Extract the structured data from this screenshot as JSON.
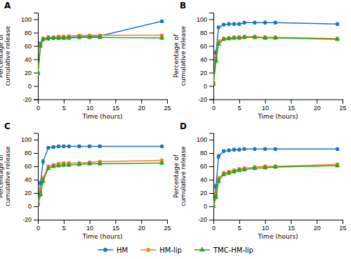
{
  "chart_data": [
    {
      "type": "line",
      "title": "A",
      "xlabel": "Time (hours)",
      "ylabel": "Percentage of\ncumulative release",
      "x": [
        0,
        0.5,
        1,
        2,
        3,
        4,
        5,
        6,
        8,
        10,
        12,
        24
      ],
      "xlim": [
        0,
        25
      ],
      "xticks": [
        0,
        5,
        10,
        15,
        20,
        25
      ],
      "ylim": [
        -20,
        110
      ],
      "yticks": [
        -20,
        0,
        20,
        40,
        60,
        80,
        100
      ],
      "grid": false,
      "legend": "bottom",
      "series": [
        {
          "name": "HM",
          "marker": "circle",
          "values": [
            20,
            64,
            70,
            71,
            72,
            72,
            72,
            73,
            74,
            74,
            75,
            97
          ],
          "errors": [
            2,
            2,
            2,
            2,
            2,
            2,
            2,
            2,
            2,
            2,
            2,
            2
          ]
        },
        {
          "name": "HM-lip",
          "marker": "square",
          "values": [
            18,
            62,
            71,
            73,
            73,
            74,
            74,
            75,
            76,
            76,
            76,
            76
          ],
          "errors": [
            2,
            2,
            2,
            2,
            2,
            2,
            2,
            2,
            2,
            2,
            2,
            2
          ]
        },
        {
          "name": "TMC-HM-lip",
          "marker": "triangle",
          "values": [
            19,
            60,
            70,
            72,
            72,
            72,
            72,
            72,
            73,
            73,
            73,
            72
          ],
          "errors": [
            2,
            2,
            2,
            2,
            2,
            2,
            2,
            2,
            2,
            2,
            2,
            2
          ]
        }
      ]
    },
    {
      "type": "line",
      "title": "B",
      "xlabel": "Time (hours)",
      "ylabel": "Percentage of\ncumulative release",
      "x": [
        0,
        0.5,
        1,
        2,
        3,
        4,
        5,
        6,
        8,
        10,
        12,
        24
      ],
      "xlim": [
        0,
        25
      ],
      "xticks": [
        0,
        5,
        10,
        15,
        20,
        25
      ],
      "ylim": [
        -20,
        110
      ],
      "yticks": [
        -20,
        0,
        20,
        40,
        60,
        80,
        100
      ],
      "grid": false,
      "series": [
        {
          "name": "HM",
          "marker": "circle",
          "values": [
            5,
            50,
            88,
            92,
            93,
            93,
            93,
            95,
            95,
            95,
            95,
            93
          ],
          "errors": [
            1,
            3,
            2,
            2,
            2,
            2,
            2,
            2,
            2,
            2,
            2,
            2
          ]
        },
        {
          "name": "HM-lip",
          "marker": "square",
          "values": [
            4,
            42,
            67,
            71,
            72,
            73,
            73,
            74,
            74,
            73,
            73,
            71
          ],
          "errors": [
            1,
            3,
            2,
            2,
            2,
            2,
            2,
            2,
            2,
            2,
            2,
            2
          ]
        },
        {
          "name": "TMC-HM-lip",
          "marker": "triangle",
          "values": [
            3,
            38,
            63,
            70,
            71,
            72,
            72,
            73,
            73,
            72,
            72,
            70
          ],
          "errors": [
            1,
            3,
            2,
            2,
            2,
            2,
            2,
            2,
            2,
            2,
            2,
            2
          ]
        }
      ]
    },
    {
      "type": "line",
      "title": "C",
      "xlabel": "Time (hours)",
      "ylabel": "Percentage of\ncumulative release",
      "x": [
        0,
        0.5,
        1,
        2,
        3,
        4,
        5,
        6,
        8,
        10,
        12,
        24
      ],
      "xlim": [
        0,
        25
      ],
      "xticks": [
        0,
        5,
        10,
        15,
        20,
        25
      ],
      "ylim": [
        -20,
        110
      ],
      "yticks": [
        -20,
        0,
        20,
        40,
        60,
        80,
        100
      ],
      "grid": false,
      "series": [
        {
          "name": "HM",
          "marker": "circle",
          "values": [
            5,
            35,
            67,
            88,
            89,
            90,
            90,
            90,
            90,
            90,
            90,
            90
          ],
          "errors": [
            1,
            3,
            3,
            2,
            2,
            2,
            2,
            2,
            2,
            2,
            2,
            2
          ]
        },
        {
          "name": "HM-lip",
          "marker": "square",
          "values": [
            4,
            22,
            42,
            60,
            62,
            64,
            65,
            65,
            65,
            66,
            67,
            69
          ],
          "errors": [
            1,
            3,
            3,
            2,
            2,
            2,
            2,
            2,
            2,
            2,
            2,
            2
          ]
        },
        {
          "name": "TMC-HM-lip",
          "marker": "triangle",
          "values": [
            3,
            18,
            38,
            57,
            60,
            61,
            62,
            62,
            63,
            64,
            64,
            65
          ],
          "errors": [
            1,
            3,
            3,
            2,
            2,
            2,
            2,
            2,
            2,
            2,
            2,
            2
          ]
        }
      ]
    },
    {
      "type": "line",
      "title": "D",
      "xlabel": "Time (hours)",
      "ylabel": "Percentage of\ncumulative release",
      "x": [
        0,
        0.5,
        1,
        2,
        3,
        4,
        5,
        6,
        8,
        10,
        12,
        24
      ],
      "xlim": [
        0,
        25
      ],
      "xticks": [
        0,
        5,
        10,
        15,
        20,
        25
      ],
      "ylim": [
        -20,
        110
      ],
      "yticks": [
        -20,
        0,
        20,
        40,
        60,
        80,
        100
      ],
      "grid": false,
      "series": [
        {
          "name": "HM",
          "marker": "circle",
          "values": [
            0,
            30,
            75,
            83,
            84,
            85,
            85,
            86,
            86,
            86,
            86,
            86
          ],
          "errors": [
            1,
            3,
            3,
            2,
            2,
            2,
            2,
            2,
            2,
            2,
            2,
            2
          ]
        },
        {
          "name": "HM-lip",
          "marker": "square",
          "values": [
            0,
            18,
            42,
            50,
            52,
            54,
            56,
            57,
            59,
            60,
            60,
            63
          ],
          "errors": [
            1,
            3,
            3,
            2,
            2,
            2,
            2,
            2,
            2,
            2,
            2,
            2
          ]
        },
        {
          "name": "TMC-HM-lip",
          "marker": "triangle",
          "values": [
            0,
            14,
            38,
            48,
            50,
            52,
            54,
            55,
            57,
            58,
            59,
            61
          ],
          "errors": [
            1,
            3,
            3,
            2,
            2,
            2,
            2,
            2,
            2,
            2,
            2,
            2
          ]
        }
      ]
    }
  ]
}
